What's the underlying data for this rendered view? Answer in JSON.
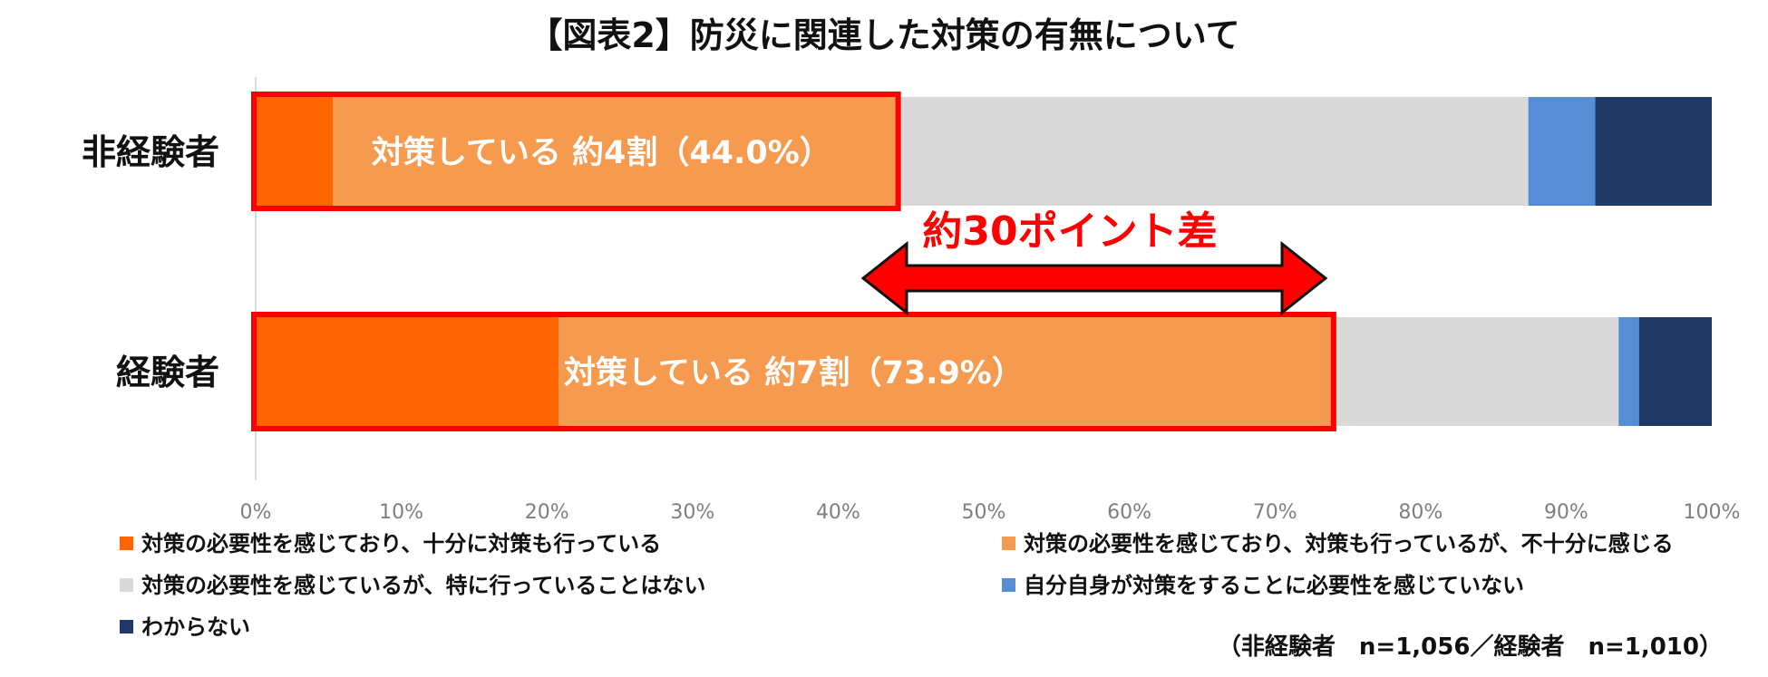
{
  "chart_data": {
    "type": "bar",
    "orientation": "horizontal",
    "stacked": true,
    "title": "【図表2】防災に関連した対策の有無について",
    "categories": [
      "非経験者",
      "経験者"
    ],
    "series": [
      {
        "name": "対策の必要性を感じており、十分に対策も行っている",
        "color": "#FF6600",
        "values": [
          5.3,
          20.8
        ]
      },
      {
        "name": "対策の必要性を感じており、対策も行っているが、不十分に感じる",
        "color": "#F59A4E",
        "values": [
          38.7,
          53.1
        ]
      },
      {
        "name": "対策の必要性を感じているが、特に行っていることはない",
        "color": "#D9D9D9",
        "values": [
          43.4,
          19.7
        ]
      },
      {
        "name": "自分自身が対策をすることに必要性を感じていない",
        "color": "#558ED5",
        "values": [
          4.6,
          1.4
        ]
      },
      {
        "name": "わからない",
        "color": "#1F3864",
        "values": [
          8.0,
          5.0
        ]
      }
    ],
    "xlim": [
      0,
      100
    ],
    "x_ticks": [
      "0%",
      "10%",
      "20%",
      "30%",
      "40%",
      "50%",
      "60%",
      "70%",
      "80%",
      "90%",
      "100%"
    ],
    "highlight_totals": [
      44.0,
      73.9
    ],
    "bar_annotations": [
      "対策している 約4割（44.0%）",
      "対策している 約7割（73.9%）"
    ],
    "difference_annotation": "約30ポイント差",
    "legend_position": "bottom",
    "footnote": "（非経験者　n=1,056／経験者　n=1,010）",
    "highlight_color": "#FF0000",
    "grid": false
  }
}
